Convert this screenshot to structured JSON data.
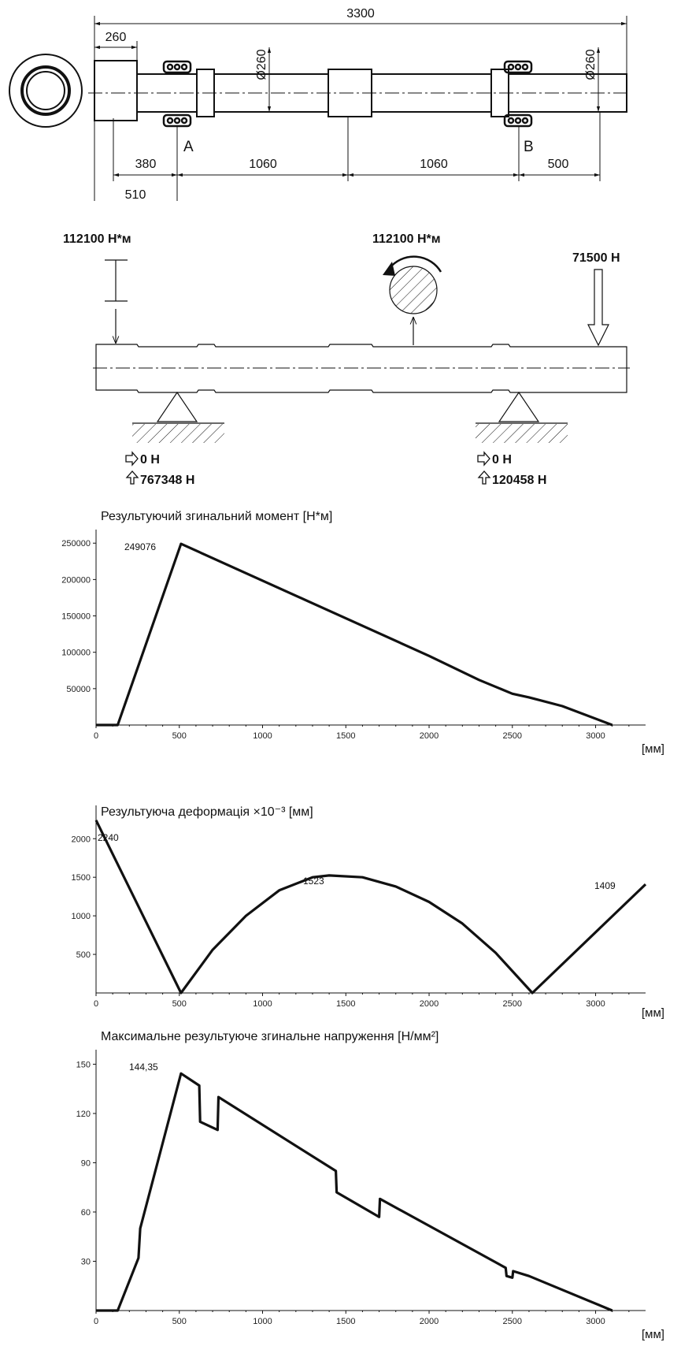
{
  "drawing": {
    "dim_total": "3300",
    "dim_collar": "260",
    "dim_dia_left": "Ø260",
    "dim_dia_right": "Ø260",
    "dim_380": "380",
    "dim_1060a": "1060",
    "dim_1060b": "1060",
    "dim_500": "500",
    "dim_510": "510",
    "support_a": "A",
    "support_b": "B"
  },
  "loads": {
    "moment_left": "112100 Н*м",
    "moment_mid": "112100 Н*м",
    "force_right": "71500 Н",
    "reaction_a_horizontal": "0 Н",
    "reaction_a_vertical": "767348 Н",
    "reaction_b_horizontal": "0 Н",
    "reaction_b_vertical": "120458 Н"
  },
  "chart_data": [
    {
      "type": "line",
      "title": "Результуючий згинальний момент [Н*м]",
      "xlabel": "[мм]",
      "xticks": [
        "0",
        "500",
        "1000",
        "1500",
        "2000",
        "2500",
        "3000"
      ],
      "yticks": [
        "50000",
        "100000",
        "150000",
        "200000",
        "250000"
      ],
      "xlim": [
        0,
        3300
      ],
      "ylim": [
        0,
        260000
      ],
      "annotation": "249076",
      "points": [
        [
          0,
          0
        ],
        [
          130,
          0
        ],
        [
          510,
          249076
        ],
        [
          2000,
          95000
        ],
        [
          2300,
          62000
        ],
        [
          2500,
          43000
        ],
        [
          2600,
          38000
        ],
        [
          2800,
          26000
        ],
        [
          3100,
          0
        ]
      ]
    },
    {
      "type": "line",
      "title": "Результуюча деформація ×10⁻³ [мм]",
      "xlabel": "[мм]",
      "xticks": [
        "0",
        "500",
        "1000",
        "1500",
        "2000",
        "2500",
        "3000"
      ],
      "yticks": [
        "500",
        "1000",
        "1500",
        "2000"
      ],
      "xlim": [
        0,
        3300
      ],
      "ylim": [
        0,
        2350
      ],
      "annotations": [
        "2240",
        "1523",
        "1409"
      ],
      "points": [
        [
          0,
          2240
        ],
        [
          510,
          0
        ],
        [
          700,
          560
        ],
        [
          900,
          1000
        ],
        [
          1100,
          1330
        ],
        [
          1300,
          1500
        ],
        [
          1400,
          1523
        ],
        [
          1600,
          1500
        ],
        [
          1800,
          1380
        ],
        [
          2000,
          1180
        ],
        [
          2200,
          900
        ],
        [
          2400,
          520
        ],
        [
          2620,
          0
        ],
        [
          3300,
          1409
        ]
      ]
    },
    {
      "type": "line",
      "title": "Максимальне результуюче згинальне напруження [Н/мм²]",
      "xlabel": "[мм]",
      "xticks": [
        "0",
        "500",
        "1000",
        "1500",
        "2000",
        "2500",
        "3000"
      ],
      "yticks": [
        "30",
        "60",
        "90",
        "120",
        "150"
      ],
      "xlim": [
        0,
        3300
      ],
      "ylim": [
        0,
        155
      ],
      "annotation": "144,35",
      "points": [
        [
          0,
          0
        ],
        [
          130,
          0
        ],
        [
          255,
          32
        ],
        [
          265,
          50
        ],
        [
          510,
          144.35
        ],
        [
          620,
          137
        ],
        [
          625,
          115
        ],
        [
          730,
          110
        ],
        [
          735,
          130
        ],
        [
          1440,
          85
        ],
        [
          1445,
          72
        ],
        [
          1700,
          57
        ],
        [
          1705,
          68
        ],
        [
          2460,
          26
        ],
        [
          2465,
          21
        ],
        [
          2500,
          20
        ],
        [
          2505,
          24
        ],
        [
          2600,
          21
        ],
        [
          3100,
          0
        ]
      ]
    }
  ]
}
